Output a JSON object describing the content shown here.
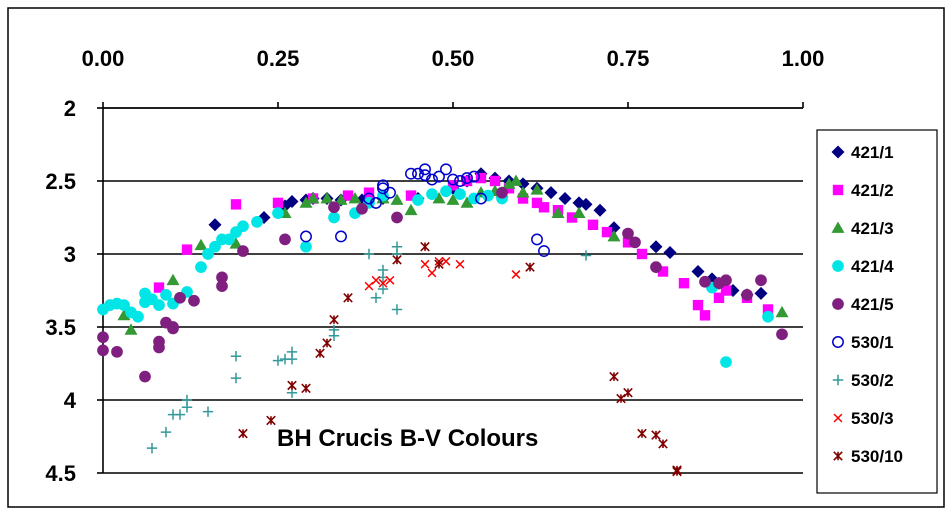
{
  "chart_data": {
    "type": "scatter",
    "title": "BH Crucis B-V Colours",
    "xlabel": "",
    "ylabel": "",
    "xlim": [
      0,
      1
    ],
    "ylim": [
      2,
      4.5
    ],
    "y_inverted": true,
    "x_axis_position": "top",
    "grid": "horizontal",
    "legend_position": "right",
    "x_ticks": [
      "0.00",
      "0.25",
      "0.50",
      "0.75",
      "1.00"
    ],
    "y_ticks": [
      "2",
      "2.5",
      "3",
      "3.5",
      "4",
      "4.5"
    ],
    "series": [
      {
        "name": "421/1",
        "marker": "diamond",
        "color": "#000080",
        "points": [
          [
            0.16,
            2.8
          ],
          [
            0.23,
            2.75
          ],
          [
            0.26,
            2.67
          ],
          [
            0.27,
            2.64
          ],
          [
            0.29,
            2.63
          ],
          [
            0.3,
            2.62
          ],
          [
            0.32,
            2.62
          ],
          [
            0.34,
            2.63
          ],
          [
            0.37,
            2.63
          ],
          [
            0.4,
            2.62
          ],
          [
            0.45,
            2.62
          ],
          [
            0.5,
            2.55
          ],
          [
            0.52,
            2.5
          ],
          [
            0.54,
            2.45
          ],
          [
            0.56,
            2.48
          ],
          [
            0.58,
            2.5
          ],
          [
            0.6,
            2.52
          ],
          [
            0.62,
            2.55
          ],
          [
            0.64,
            2.58
          ],
          [
            0.66,
            2.62
          ],
          [
            0.68,
            2.65
          ],
          [
            0.69,
            2.66
          ],
          [
            0.71,
            2.7
          ],
          [
            0.73,
            2.82
          ],
          [
            0.79,
            2.95
          ],
          [
            0.81,
            2.99
          ],
          [
            0.85,
            3.12
          ],
          [
            0.87,
            3.17
          ],
          [
            0.88,
            3.2
          ],
          [
            0.9,
            3.25
          ],
          [
            0.92,
            3.28
          ],
          [
            0.94,
            3.27
          ]
        ]
      },
      {
        "name": "421/2",
        "marker": "square",
        "color": "#FF00FF",
        "points": [
          [
            0.08,
            3.23
          ],
          [
            0.12,
            2.97
          ],
          [
            0.19,
            2.66
          ],
          [
            0.25,
            2.65
          ],
          [
            0.3,
            2.62
          ],
          [
            0.35,
            2.6
          ],
          [
            0.38,
            2.58
          ],
          [
            0.44,
            2.6
          ],
          [
            0.5,
            2.53
          ],
          [
            0.52,
            2.5
          ],
          [
            0.54,
            2.48
          ],
          [
            0.56,
            2.5
          ],
          [
            0.58,
            2.55
          ],
          [
            0.6,
            2.62
          ],
          [
            0.62,
            2.65
          ],
          [
            0.63,
            2.68
          ],
          [
            0.65,
            2.7
          ],
          [
            0.67,
            2.75
          ],
          [
            0.7,
            2.8
          ],
          [
            0.72,
            2.85
          ],
          [
            0.75,
            2.92
          ],
          [
            0.77,
            3.0
          ],
          [
            0.8,
            3.12
          ],
          [
            0.83,
            3.2
          ],
          [
            0.85,
            3.35
          ],
          [
            0.86,
            3.42
          ],
          [
            0.88,
            3.3
          ],
          [
            0.89,
            3.25
          ],
          [
            0.92,
            3.3
          ],
          [
            0.95,
            3.38
          ]
        ]
      },
      {
        "name": "421/3",
        "marker": "triangle",
        "color": "#339933",
        "points": [
          [
            0.03,
            3.42
          ],
          [
            0.04,
            3.52
          ],
          [
            0.1,
            3.18
          ],
          [
            0.14,
            2.94
          ],
          [
            0.19,
            2.93
          ],
          [
            0.26,
            2.72
          ],
          [
            0.29,
            2.65
          ],
          [
            0.3,
            2.62
          ],
          [
            0.32,
            2.62
          ],
          [
            0.34,
            2.63
          ],
          [
            0.36,
            2.62
          ],
          [
            0.4,
            2.62
          ],
          [
            0.42,
            2.63
          ],
          [
            0.44,
            2.7
          ],
          [
            0.48,
            2.62
          ],
          [
            0.5,
            2.63
          ],
          [
            0.52,
            2.65
          ],
          [
            0.54,
            2.58
          ],
          [
            0.56,
            2.57
          ],
          [
            0.57,
            2.58
          ],
          [
            0.58,
            2.52
          ],
          [
            0.59,
            2.5
          ],
          [
            0.6,
            2.58
          ],
          [
            0.62,
            2.56
          ],
          [
            0.65,
            2.72
          ],
          [
            0.68,
            2.72
          ],
          [
            0.73,
            2.88
          ],
          [
            0.97,
            3.4
          ]
        ]
      },
      {
        "name": "421/4",
        "marker": "circle",
        "color": "#00E5E5",
        "points": [
          [
            0.0,
            3.38
          ],
          [
            0.01,
            3.35
          ],
          [
            0.02,
            3.34
          ],
          [
            0.03,
            3.35
          ],
          [
            0.04,
            3.4
          ],
          [
            0.05,
            3.43
          ],
          [
            0.06,
            3.33
          ],
          [
            0.06,
            3.27
          ],
          [
            0.07,
            3.31
          ],
          [
            0.08,
            3.35
          ],
          [
            0.09,
            3.28
          ],
          [
            0.1,
            3.34
          ],
          [
            0.11,
            3.3
          ],
          [
            0.12,
            3.26
          ],
          [
            0.14,
            3.09
          ],
          [
            0.15,
            3.0
          ],
          [
            0.16,
            2.95
          ],
          [
            0.17,
            2.9
          ],
          [
            0.18,
            2.9
          ],
          [
            0.19,
            2.85
          ],
          [
            0.2,
            2.81
          ],
          [
            0.22,
            2.78
          ],
          [
            0.25,
            2.72
          ],
          [
            0.29,
            2.95
          ],
          [
            0.33,
            2.75
          ],
          [
            0.36,
            2.72
          ],
          [
            0.38,
            2.65
          ],
          [
            0.4,
            2.6
          ],
          [
            0.45,
            2.63
          ],
          [
            0.47,
            2.59
          ],
          [
            0.49,
            2.57
          ],
          [
            0.51,
            2.59
          ],
          [
            0.53,
            2.62
          ],
          [
            0.55,
            2.6
          ],
          [
            0.57,
            2.62
          ],
          [
            0.87,
            3.23
          ],
          [
            0.89,
            3.74
          ],
          [
            0.95,
            3.43
          ]
        ]
      },
      {
        "name": "421/5",
        "marker": "circle",
        "color": "#7F1F7F",
        "points": [
          [
            0.0,
            3.57
          ],
          [
            0.0,
            3.66
          ],
          [
            0.02,
            3.67
          ],
          [
            0.06,
            3.84
          ],
          [
            0.08,
            3.6
          ],
          [
            0.08,
            3.64
          ],
          [
            0.09,
            3.47
          ],
          [
            0.1,
            3.5
          ],
          [
            0.1,
            3.51
          ],
          [
            0.11,
            3.3
          ],
          [
            0.13,
            3.32
          ],
          [
            0.17,
            3.16
          ],
          [
            0.17,
            3.22
          ],
          [
            0.2,
            2.98
          ],
          [
            0.26,
            2.9
          ],
          [
            0.33,
            2.68
          ],
          [
            0.37,
            2.69
          ],
          [
            0.42,
            2.75
          ],
          [
            0.57,
            2.58
          ],
          [
            0.75,
            2.86
          ],
          [
            0.76,
            2.92
          ],
          [
            0.79,
            3.09
          ],
          [
            0.86,
            3.19
          ],
          [
            0.88,
            3.2
          ],
          [
            0.89,
            3.18
          ],
          [
            0.92,
            3.28
          ],
          [
            0.94,
            3.18
          ],
          [
            0.97,
            3.55
          ]
        ]
      },
      {
        "name": "530/1",
        "marker": "open-circle",
        "color": "#0000CC",
        "points": [
          [
            0.29,
            2.88
          ],
          [
            0.34,
            2.88
          ],
          [
            0.38,
            2.62
          ],
          [
            0.39,
            2.65
          ],
          [
            0.4,
            2.55
          ],
          [
            0.4,
            2.53
          ],
          [
            0.41,
            2.58
          ],
          [
            0.44,
            2.45
          ],
          [
            0.45,
            2.45
          ],
          [
            0.46,
            2.46
          ],
          [
            0.46,
            2.42
          ],
          [
            0.47,
            2.49
          ],
          [
            0.48,
            2.47
          ],
          [
            0.49,
            2.42
          ],
          [
            0.5,
            2.49
          ],
          [
            0.51,
            2.5
          ],
          [
            0.52,
            2.48
          ],
          [
            0.53,
            2.47
          ],
          [
            0.54,
            2.62
          ],
          [
            0.62,
            2.9
          ],
          [
            0.63,
            2.98
          ]
        ]
      },
      {
        "name": "530/2",
        "marker": "plus",
        "color": "#339999",
        "points": [
          [
            0.07,
            4.33
          ],
          [
            0.09,
            4.22
          ],
          [
            0.1,
            4.1
          ],
          [
            0.11,
            4.1
          ],
          [
            0.12,
            4.05
          ],
          [
            0.12,
            4.0
          ],
          [
            0.15,
            4.08
          ],
          [
            0.19,
            3.7
          ],
          [
            0.19,
            3.85
          ],
          [
            0.25,
            3.73
          ],
          [
            0.26,
            3.72
          ],
          [
            0.27,
            3.67
          ],
          [
            0.27,
            3.72
          ],
          [
            0.27,
            3.95
          ],
          [
            0.33,
            3.52
          ],
          [
            0.33,
            3.56
          ],
          [
            0.38,
            3.0
          ],
          [
            0.39,
            3.3
          ],
          [
            0.4,
            3.11
          ],
          [
            0.4,
            3.16
          ],
          [
            0.4,
            3.24
          ],
          [
            0.42,
            2.95
          ],
          [
            0.42,
            3.0
          ],
          [
            0.42,
            3.38
          ],
          [
            0.69,
            3.01
          ]
        ]
      },
      {
        "name": "530/3",
        "marker": "x",
        "color": "#FF0000",
        "points": [
          [
            0.38,
            3.22
          ],
          [
            0.39,
            3.18
          ],
          [
            0.4,
            3.2
          ],
          [
            0.41,
            3.18
          ],
          [
            0.46,
            3.07
          ],
          [
            0.47,
            3.13
          ],
          [
            0.48,
            3.05
          ],
          [
            0.49,
            3.05
          ],
          [
            0.51,
            3.07
          ],
          [
            0.59,
            3.14
          ]
        ]
      },
      {
        "name": "530/10",
        "marker": "star",
        "color": "#800000",
        "points": [
          [
            0.2,
            4.23
          ],
          [
            0.24,
            4.14
          ],
          [
            0.27,
            3.9
          ],
          [
            0.29,
            3.92
          ],
          [
            0.31,
            3.68
          ],
          [
            0.32,
            3.61
          ],
          [
            0.33,
            3.45
          ],
          [
            0.35,
            3.3
          ],
          [
            0.42,
            3.04
          ],
          [
            0.46,
            2.95
          ],
          [
            0.48,
            3.07
          ],
          [
            0.61,
            3.09
          ],
          [
            0.73,
            3.84
          ],
          [
            0.74,
            3.99
          ],
          [
            0.75,
            3.95
          ],
          [
            0.77,
            4.23
          ],
          [
            0.79,
            4.24
          ],
          [
            0.8,
            4.3
          ],
          [
            0.82,
            4.48
          ],
          [
            0.82,
            4.49
          ]
        ]
      }
    ]
  }
}
